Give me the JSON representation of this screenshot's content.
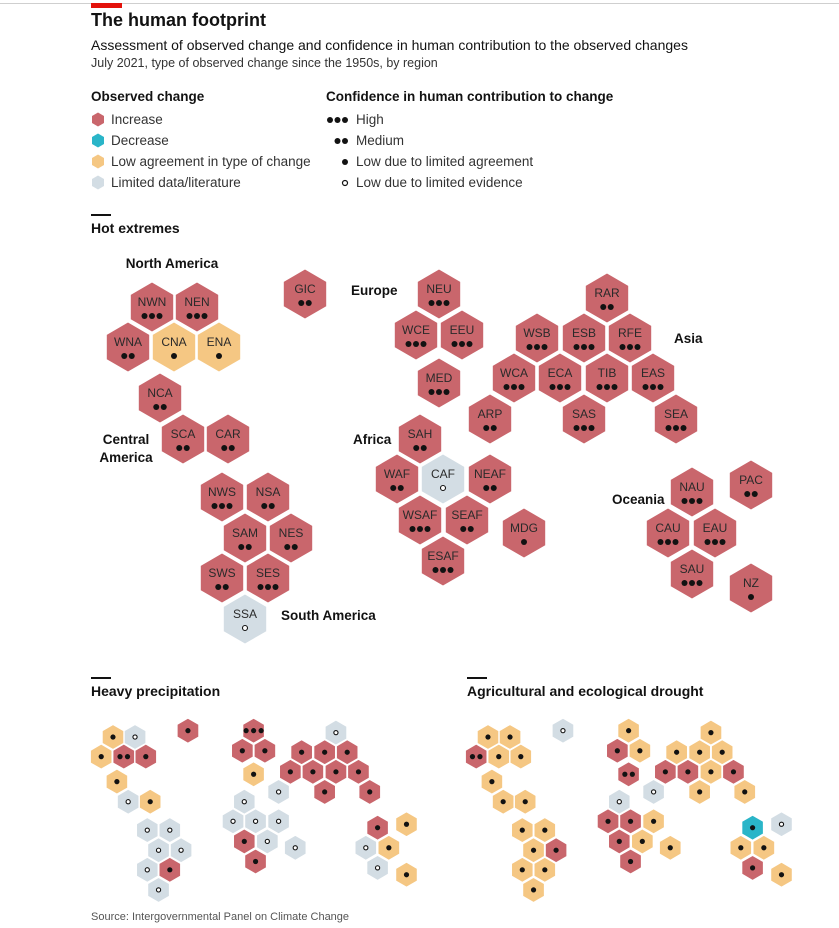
{
  "header": {
    "title": "The human footprint",
    "subtitle": "Assessment of observed change and confidence in human contribution to the observed changes",
    "dateline": "July 2021, type of observed change since the 1950s, by region"
  },
  "legend": {
    "observed_title": "Observed change",
    "observed": [
      {
        "key": "I",
        "label": "Increase",
        "color": "#c9666c"
      },
      {
        "key": "D",
        "label": "Decrease",
        "color": "#2ab5c8"
      },
      {
        "key": "L",
        "label": "Low agreement in type of change",
        "color": "#f5c783"
      },
      {
        "key": "G",
        "label": "Limited data/literature",
        "color": "#d3dde4"
      }
    ],
    "confidence_title": "Confidence in human contribution to change",
    "confidence": [
      {
        "key": "3",
        "label": "High"
      },
      {
        "key": "2",
        "label": "Medium"
      },
      {
        "key": "1",
        "label": "Low due to limited agreement"
      },
      {
        "key": "0",
        "label": "Low due to limited evidence"
      }
    ]
  },
  "continents": {
    "north_america": "North America",
    "central_america_1": "Central",
    "central_america_2": "America",
    "south_america": "South America",
    "europe": "Europe",
    "africa": "Africa",
    "asia": "Asia",
    "oceania": "Oceania"
  },
  "chart_data": {
    "type": "hexmap",
    "value_format": "category letter (I=Increase, D=Decrease, L=Low agreement, G=Limited data) + confidence dots (3=High, 2=Medium, 1=Low limited agreement, 0=Low limited evidence)",
    "maps": [
      {
        "title": "Hot extremes",
        "labels_shown": true,
        "values": {
          "NWN": "I3",
          "NEN": "I3",
          "WNA": "I2",
          "CNA": "L1",
          "ENA": "L1",
          "GIC": "I2",
          "NCA": "I2",
          "SCA": "I2",
          "CAR": "I2",
          "NWS": "I3",
          "NSA": "I2",
          "SAM": "I2",
          "NES": "I2",
          "SWS": "I2",
          "SES": "I3",
          "SSA": "G0",
          "NEU": "I3",
          "WCE": "I3",
          "EEU": "I3",
          "MED": "I3",
          "RAR": "I2",
          "WSB": "I3",
          "ESB": "I3",
          "RFE": "I3",
          "WCA": "I3",
          "ECA": "I3",
          "TIB": "I3",
          "EAS": "I3",
          "ARP": "I2",
          "SAS": "I3",
          "SEA": "I3",
          "SAH": "I2",
          "WAF": "I2",
          "CAF": "G0",
          "NEAF": "I2",
          "WSAF": "I3",
          "SEAF": "I2",
          "ESAF": "I3",
          "MDG": "I1",
          "NAU": "I3",
          "PAC": "I2",
          "CAU": "I3",
          "EAU": "I3",
          "SAU": "I3",
          "NZ": "I1"
        }
      },
      {
        "title": "Heavy precipitation",
        "labels_shown": false,
        "values": {
          "NWN": "L1",
          "NEN": "G0",
          "WNA": "L1",
          "CNA": "I2",
          "ENA": "I1",
          "GIC": "I1",
          "NCA": "L1",
          "SCA": "G0",
          "CAR": "L1",
          "NWS": "G0",
          "NSA": "G0",
          "SAM": "G0",
          "NES": "G0",
          "SWS": "G0",
          "SES": "I1",
          "SSA": "G0",
          "NEU": "I3",
          "WCE": "I1",
          "EEU": "I1",
          "MED": "L1",
          "RAR": "G0",
          "WSB": "I1",
          "ESB": "I1",
          "RFE": "I1",
          "WCA": "I1",
          "ECA": "I1",
          "TIB": "I1",
          "EAS": "I1",
          "ARP": "G0",
          "SAS": "I1",
          "SEA": "I1",
          "SAH": "G0",
          "WAF": "G0",
          "CAF": "G0",
          "NEAF": "G0",
          "WSAF": "I1",
          "SEAF": "G0",
          "ESAF": "I1",
          "MDG": "G0",
          "NAU": "I1",
          "PAC": "L1",
          "CAU": "G0",
          "EAU": "L1",
          "SAU": "G0",
          "NZ": "L1"
        }
      },
      {
        "title": "Agricultural and ecological drought",
        "labels_shown": false,
        "values": {
          "NWN": "L1",
          "NEN": "L1",
          "WNA": "I2",
          "CNA": "L1",
          "ENA": "L1",
          "GIC": "G0",
          "NCA": "L1",
          "SCA": "L1",
          "CAR": "L1",
          "NWS": "L1",
          "NSA": "L1",
          "SAM": "L1",
          "NES": "I1",
          "SWS": "L1",
          "SES": "L1",
          "SSA": "L1",
          "NEU": "L1",
          "WCE": "I1",
          "EEU": "L1",
          "MED": "I2",
          "RAR": "L1",
          "WSB": "L1",
          "ESB": "L1",
          "RFE": "L1",
          "WCA": "I1",
          "ECA": "I1",
          "TIB": "L1",
          "EAS": "I1",
          "ARP": "G0",
          "SAS": "L1",
          "SEA": "L1",
          "SAH": "G0",
          "WAF": "I1",
          "CAF": "I1",
          "NEAF": "L1",
          "WSAF": "I1",
          "SEAF": "L1",
          "ESAF": "I1",
          "MDG": "L1",
          "NAU": "D1",
          "PAC": "G0",
          "CAU": "L1",
          "EAU": "L1",
          "SAU": "I1",
          "NZ": "L1"
        }
      }
    ]
  },
  "source": "Source: Intergovernmental Panel on Climate Change"
}
